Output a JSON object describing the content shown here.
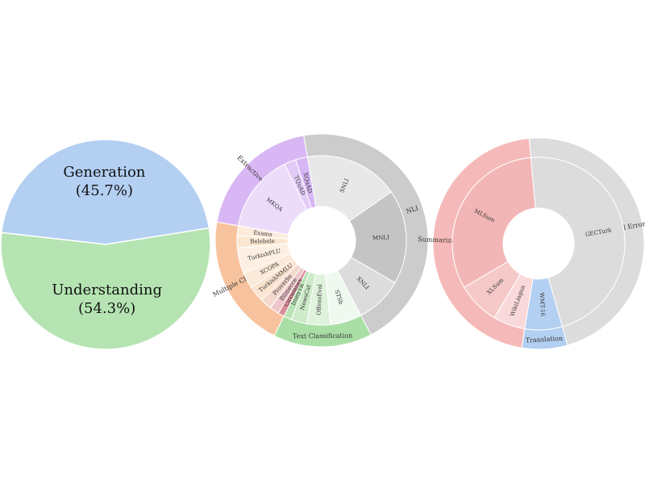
{
  "chart_data": [
    {
      "type": "pie",
      "slices": [
        {
          "label": "Generation",
          "pct_label": "(45.7%)",
          "value": 45.7,
          "color": "#b3cff2"
        },
        {
          "label": "Understanding",
          "pct_label": "(54.3%)",
          "value": 54.3,
          "color": "#b5e4b2"
        }
      ]
    },
    {
      "type": "sunburst",
      "categories": [
        {
          "name": "NLI",
          "color": "#cccccc",
          "children": [
            {
              "name": "SNLI",
              "value": 12,
              "color": "#e8e8e8"
            },
            {
              "name": "MNLI",
              "value": 12,
              "color": "#c4c4c4"
            },
            {
              "name": "XNLI",
              "value": 6,
              "color": "#dcdcdc"
            }
          ]
        },
        {
          "name": "Text Classification",
          "color": "#a9dfa5",
          "children": [
            {
              "name": "STSb",
              "value": 4,
              "color": "#f0f9ef"
            },
            {
              "name": "OffensEval",
              "value": 3,
              "color": "#dff2dc"
            },
            {
              "name": "NewsCat",
              "value": 2,
              "color": "#cdeac9"
            },
            {
              "name": "IronyTR",
              "value": 1,
              "color": "#b9e3b5"
            }
          ]
        },
        {
          "name": "Multiple Choice",
          "color": "#f7c39e",
          "children": [
            {
              "name": "Circumflex",
              "value": 0.8,
              "color": "#d98c98"
            },
            {
              "name": "Bilmecce",
              "value": 1.2,
              "color": "#efc6cb"
            },
            {
              "name": "Proverbs",
              "value": 1.5,
              "color": "#f4d8cc"
            },
            {
              "name": "TurkishMMLU",
              "value": 2.0,
              "color": "#fae3cf"
            },
            {
              "name": "XCOPA",
              "value": 2.0,
              "color": "#fbe9d9"
            },
            {
              "name": "TurkishPLU",
              "value": 3.3,
              "color": "#fdf0e3"
            },
            {
              "name": "Belebele",
              "value": 1.5,
              "color": "#fbe6d1"
            },
            {
              "name": "Exams",
              "value": 1.3,
              "color": "#fcecdc"
            }
          ]
        },
        {
          "name": "Extractive QA",
          "color": "#d8b7f4",
          "children": [
            {
              "name": "MKQA",
              "value": 10,
              "color": "#ecdcfa"
            },
            {
              "name": "TQuAD",
              "value": 1.5,
              "color": "#e2cbf7"
            },
            {
              "name": "XQuAD",
              "value": 1.5,
              "color": "#d6b6f3"
            }
          ]
        }
      ]
    },
    {
      "type": "sunburst",
      "categories": [
        {
          "name": "Grammatical Error Correction",
          "color": "#dcdcdc",
          "children": [
            {
              "name": "GECTurk",
              "value": 47,
              "color": "#dcdcdc"
            }
          ]
        },
        {
          "name": "Translation",
          "color": "#b3cff2",
          "children": [
            {
              "name": "WMT-16",
              "value": 7,
              "color": "#b3cff2"
            }
          ]
        },
        {
          "name": "Summarization",
          "color": "#f6b9b9",
          "children": [
            {
              "name": "WikiLingua",
              "value": 6,
              "color": "#f9d9d9"
            },
            {
              "name": "XLSum",
              "value": 8,
              "color": "#f6c9c9"
            },
            {
              "name": "MLSum",
              "value": 32,
              "color": "#f3b6b6"
            }
          ]
        }
      ]
    }
  ]
}
